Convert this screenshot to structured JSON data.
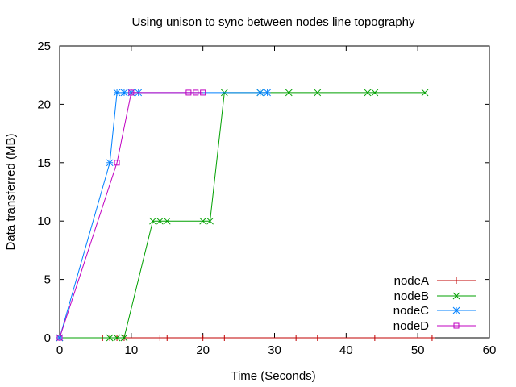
{
  "chart_data": {
    "type": "line",
    "title": "Using unison to sync between nodes line topography",
    "xlabel": "Time (Seconds)",
    "ylabel": "Data transferred (MB)",
    "xlim": [
      0,
      60
    ],
    "ylim": [
      0,
      25
    ],
    "xticks": [
      0,
      10,
      20,
      30,
      40,
      50,
      60
    ],
    "yticks": [
      0,
      5,
      10,
      15,
      20,
      25
    ],
    "grid": false,
    "legend_position": "bottom-right",
    "series": [
      {
        "name": "nodeA",
        "color": "#c00000",
        "marker": "plus",
        "x": [
          0,
          6,
          7,
          8,
          9,
          14,
          15,
          20,
          23,
          33,
          36,
          44,
          52
        ],
        "y": [
          0,
          0,
          0,
          0,
          0,
          0,
          0,
          0,
          0,
          0,
          0,
          0,
          0
        ]
      },
      {
        "name": "nodeB",
        "color": "#00a000",
        "marker": "cross",
        "x": [
          0,
          7,
          8,
          9,
          13,
          14,
          15,
          20,
          21,
          23,
          28,
          32,
          36,
          43,
          44,
          51
        ],
        "y": [
          0,
          0,
          0,
          0,
          10,
          10,
          10,
          10,
          10,
          21,
          21,
          21,
          21,
          21,
          21,
          21
        ]
      },
      {
        "name": "nodeC",
        "color": "#0080ff",
        "marker": "star",
        "x": [
          0,
          7,
          8,
          9,
          10,
          11,
          28,
          29
        ],
        "y": [
          0,
          15,
          21,
          21,
          21,
          21,
          21,
          21
        ]
      },
      {
        "name": "nodeD",
        "color": "#c000c0",
        "marker": "square",
        "x": [
          0,
          8,
          10,
          18,
          19,
          20
        ],
        "y": [
          0,
          15,
          21,
          21,
          21,
          21
        ]
      }
    ]
  }
}
